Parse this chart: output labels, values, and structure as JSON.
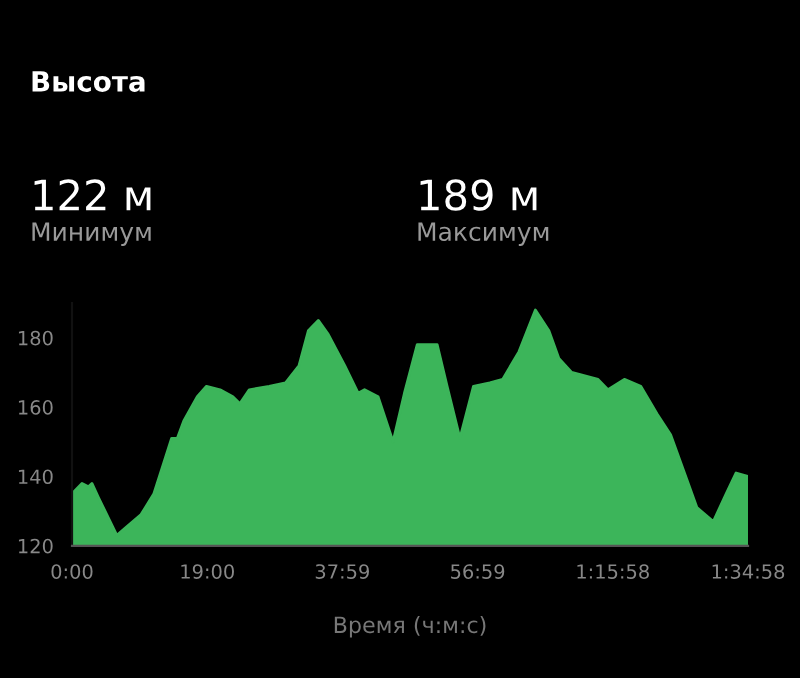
{
  "chart_data": {
    "type": "area",
    "title": "Высота",
    "xlabel": "Время (ч:м:с)",
    "annotations": [
      "122 м",
      "Минимум",
      "189 м",
      "Максимум"
    ],
    "x": [
      0,
      1.4,
      2.3,
      2.8,
      3.7,
      6.3,
      7.4,
      9.7,
      11.5,
      12.9,
      14.0,
      14.8,
      15.7,
      17.6,
      18.9,
      20.8,
      22.6,
      23.6,
      24.9,
      27.7,
      30.0,
      31.9,
      33.2,
      34.6,
      36.0,
      38.3,
      40.2,
      41.1,
      43.0,
      45.1,
      46.7,
      48.5,
      51.3,
      52.7,
      54.5,
      56.4,
      58.7,
      60.5,
      62.8,
      65.1,
      67.0,
      68.4,
      70.2,
      73.9,
      75.3,
      77.6,
      79.9,
      82.2,
      84.1,
      86.4,
      87.8,
      90.1,
      91.9,
      93.3,
      94.97
    ],
    "series": [
      {
        "color": "#3cb55a",
        "values": [
          135,
          138,
          137,
          138,
          134,
          123,
          125,
          129,
          135,
          144,
          151,
          151,
          156,
          163,
          166,
          165,
          163,
          161,
          165,
          166,
          167,
          172,
          182,
          185,
          181,
          172,
          164,
          165,
          163,
          150,
          164,
          178,
          178,
          166,
          151,
          166,
          167,
          168,
          176,
          188,
          182,
          174,
          170,
          168,
          165,
          168,
          166,
          158,
          152,
          139,
          131,
          127,
          135,
          141,
          140
        ]
      }
    ],
    "xlim": [
      0,
      94.97
    ],
    "ylim": [
      120,
      190
    ],
    "xticks": [
      {
        "value": 0,
        "label": "0:00"
      },
      {
        "value": 19,
        "label": "19:00"
      },
      {
        "value": 37.98,
        "label": "37:59"
      },
      {
        "value": 56.98,
        "label": "56:59"
      },
      {
        "value": 75.97,
        "label": "1:15:58"
      },
      {
        "value": 94.97,
        "label": "1:34:58"
      }
    ],
    "yticks": [
      120,
      140,
      160,
      180
    ],
    "grid": false,
    "legend": false
  }
}
